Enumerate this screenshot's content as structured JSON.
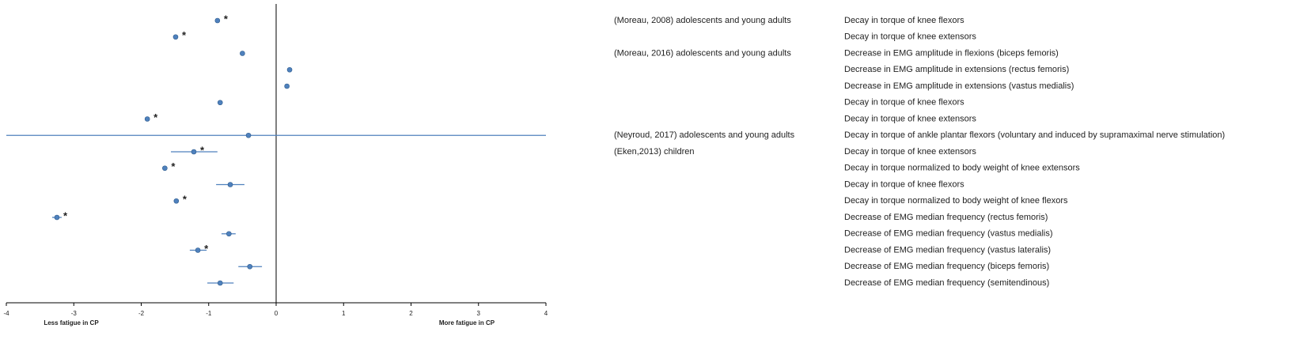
{
  "chart_data": {
    "type": "forest",
    "xlim": [
      -4,
      4
    ],
    "xticks": [
      -4,
      -3,
      -2,
      -1,
      0,
      1,
      2,
      3,
      4
    ],
    "xlabel_left": "Less fatigue in CP",
    "xlabel_right": "More fatigue in CP",
    "color": "#4f81bd",
    "values": [
      -0.87,
      -1.49,
      -0.5,
      0.2,
      0.16,
      -0.83,
      -1.91,
      -0.41,
      -1.22,
      -1.65,
      -0.68,
      -1.48,
      -3.25,
      -0.7,
      -1.16,
      -0.39,
      -0.83
    ],
    "ci_low": [
      null,
      null,
      null,
      null,
      null,
      null,
      null,
      -4,
      -1.56,
      null,
      -0.89,
      null,
      -3.32,
      -0.81,
      -1.28,
      -0.56,
      -1.02
    ],
    "ci_high": [
      null,
      null,
      null,
      null,
      null,
      null,
      null,
      4,
      -0.87,
      null,
      -0.47,
      null,
      -3.18,
      -0.6,
      -1.03,
      -0.21,
      -0.63
    ],
    "significance": [
      "*",
      "*",
      null,
      null,
      null,
      null,
      "*",
      null,
      "*",
      "*",
      null,
      "*",
      "*",
      null,
      "*",
      null,
      null
    ],
    "studies": [
      "(Moreau, 2008)  adolescents and young adults",
      null,
      "(Moreau, 2016)  adolescents and young adults",
      null,
      null,
      null,
      null,
      "(Neyroud, 2017)  adolescents and young adults",
      "(Eken,2013)  children",
      null,
      null,
      null,
      null,
      null,
      null,
      null,
      null
    ],
    "outcomes": [
      "Decay in torque of knee flexors",
      "Decay in torque of knee extensors",
      "Decrease in EMG amplitude in flexions (biceps femoris)",
      "Decrease in EMG amplitude in extensions (rectus femoris)",
      "Decrease in EMG amplitude in extensions (vastus medialis)",
      "Decay in torque of knee flexors",
      "Decay in torque of knee extensors",
      "Decay in torque of ankle plantar flexors (voluntary and induced by supramaximal nerve stimulation)",
      "Decay in torque of knee extensors",
      "Decay in torque normalized to body weight of knee extensors",
      "Decay in torque of knee flexors",
      "Decay in torque normalized to body weight of knee flexors",
      "Decrease of EMG median frequency (rectus femoris)",
      "Decrease of EMG median frequency (vastus medialis)",
      "Decrease of EMG median frequency (vastus lateralis)",
      "Decrease of EMG median frequency (biceps femoris)",
      "Decrease of EMG median frequency (semitendinous)"
    ]
  }
}
